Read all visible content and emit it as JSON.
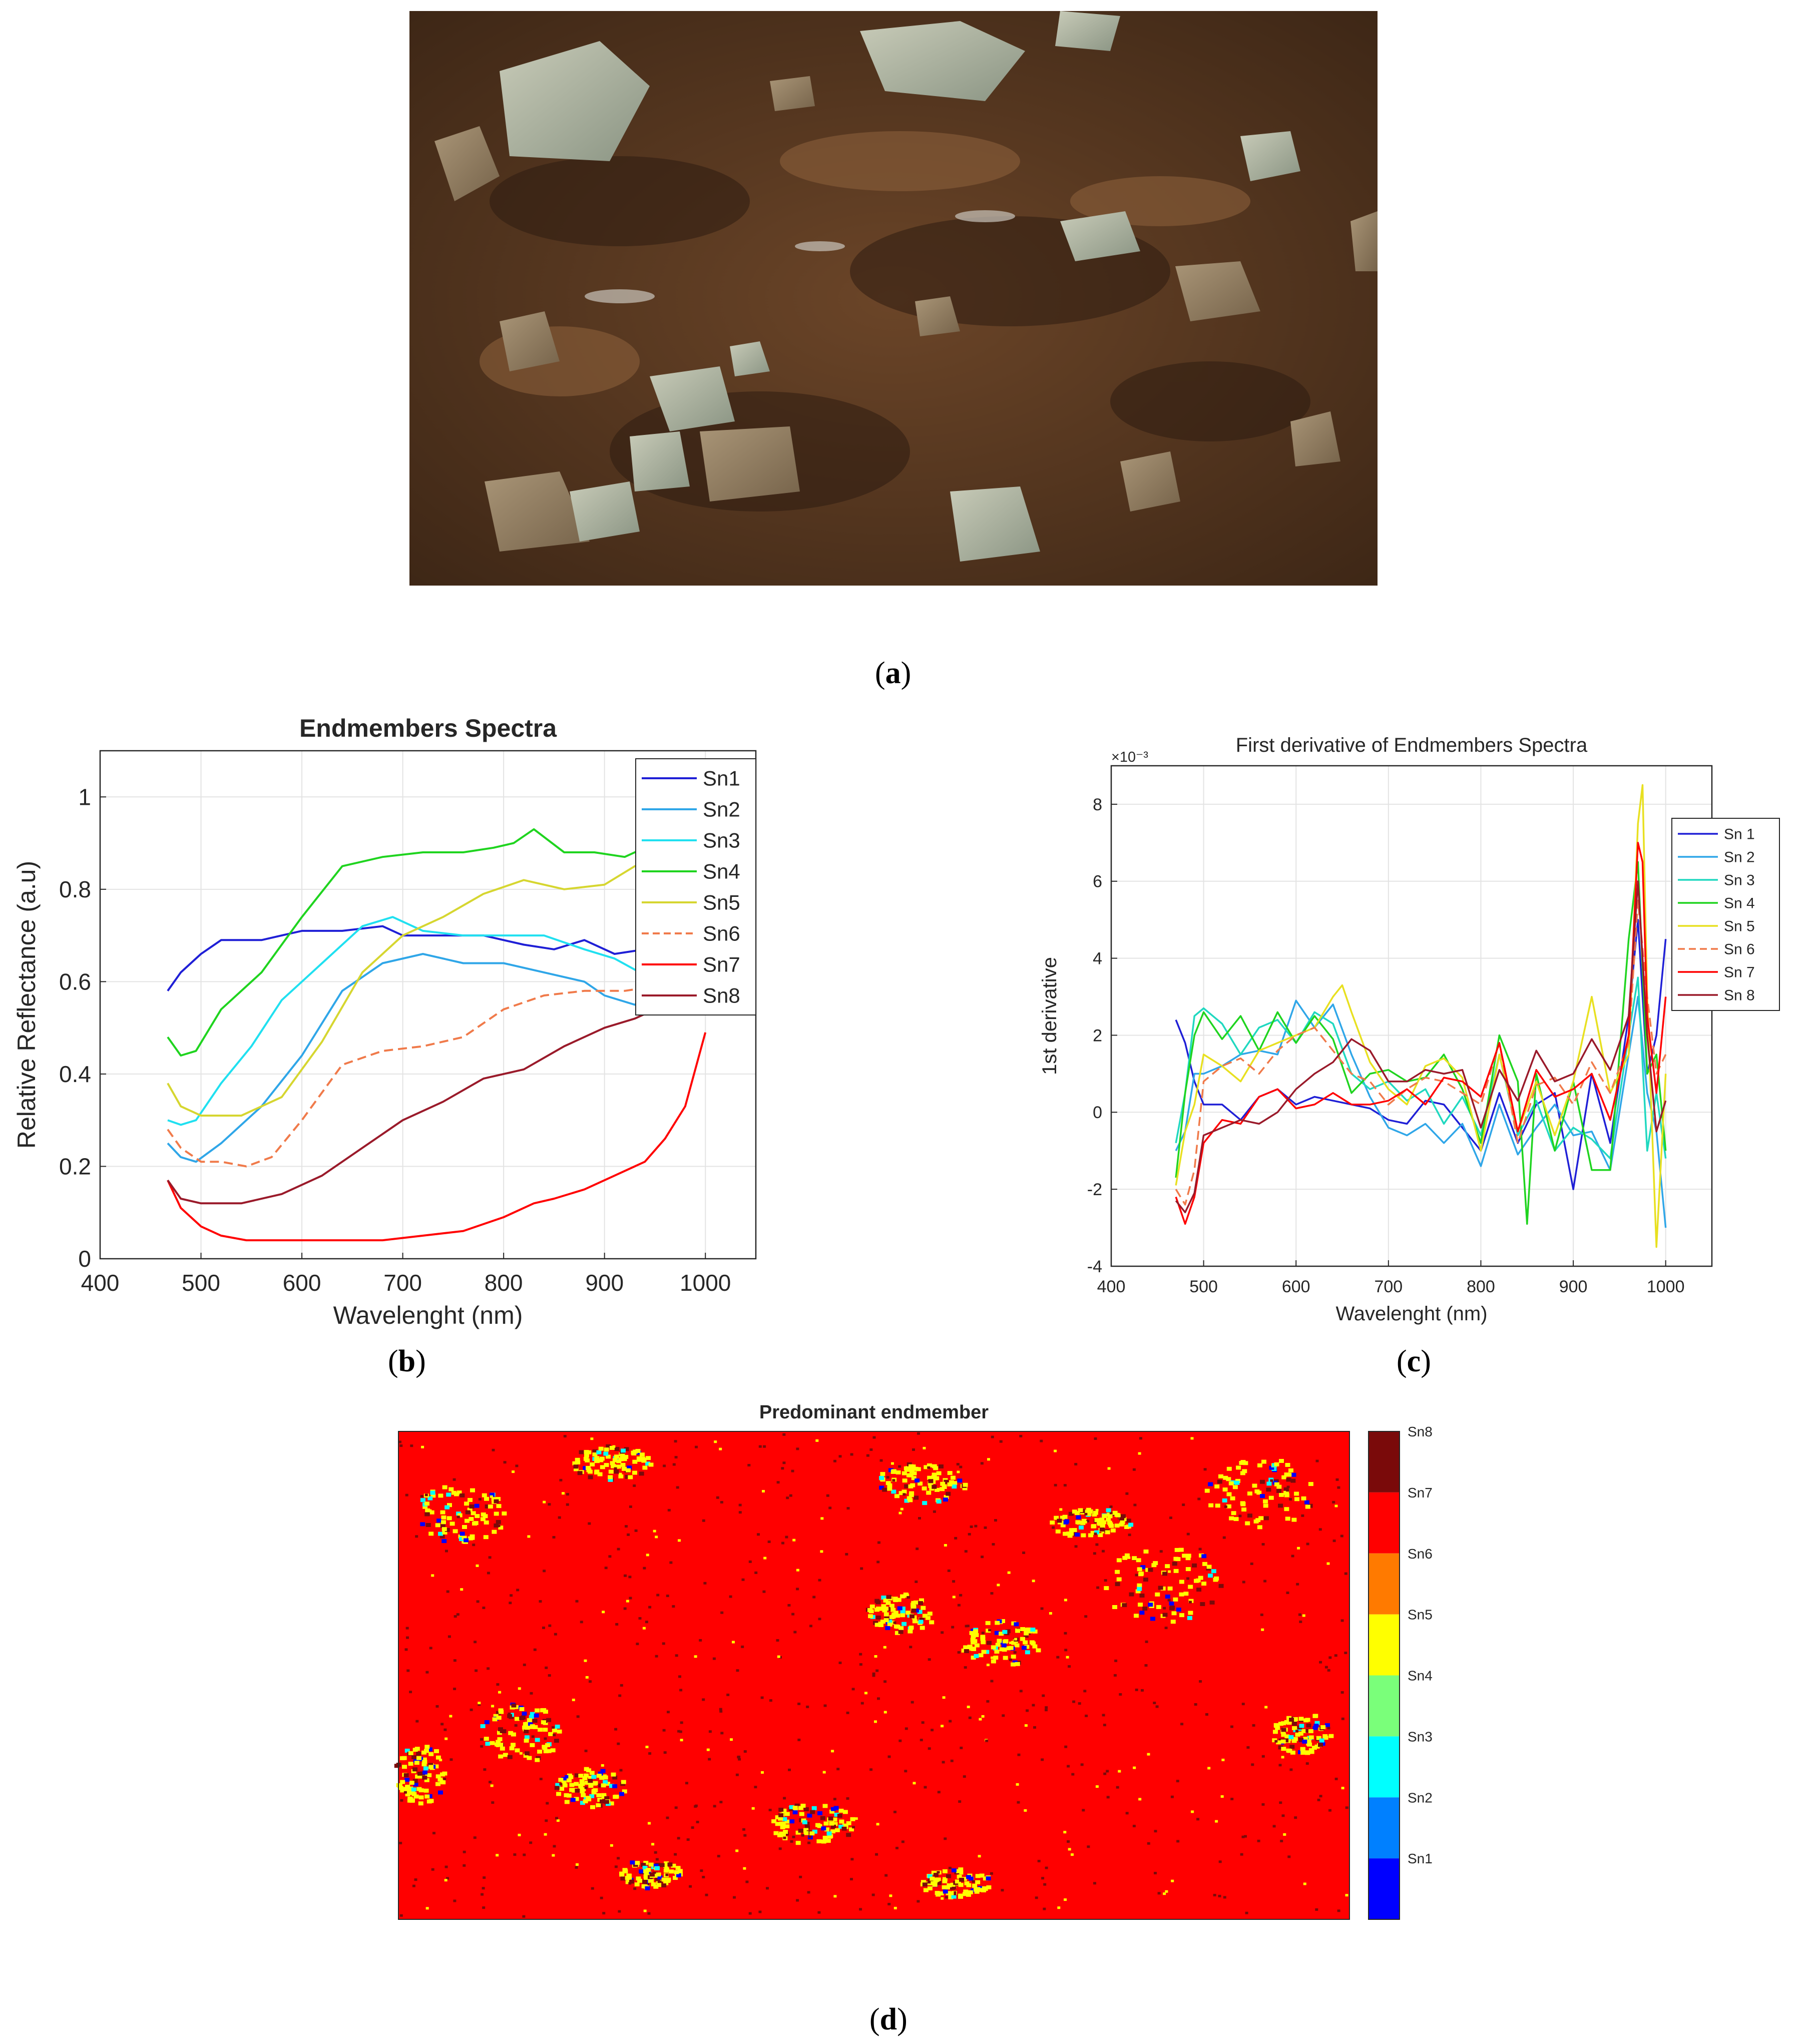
{
  "figure": {
    "label_a": "a",
    "label_b": "b",
    "label_c": "c",
    "label_d": "d"
  },
  "chart_data": [
    {
      "type": "line",
      "title": "Endmembers Spectra",
      "xlabel": "Wavelenght (nm)",
      "ylabel": "Relative Reflectance (a.u)",
      "xlim": [
        400,
        1050
      ],
      "ylim": [
        0,
        1.1
      ],
      "xticks": [
        "400",
        "500",
        "600",
        "700",
        "800",
        "900",
        "1000"
      ],
      "yticks": [
        "0",
        "0.2",
        "0.4",
        "0.6",
        "0.8",
        "1"
      ],
      "grid": true,
      "legend": "top-right",
      "series": [
        {
          "name": "Sn1",
          "color": "#1f1fd6",
          "dash": false,
          "x": [
            467,
            480,
            500,
            520,
            540,
            560,
            580,
            600,
            640,
            680,
            700,
            740,
            780,
            820,
            850,
            880,
            910,
            940,
            960,
            980,
            1000
          ],
          "y": [
            0.58,
            0.62,
            0.66,
            0.69,
            0.69,
            0.69,
            0.7,
            0.71,
            0.71,
            0.72,
            0.7,
            0.7,
            0.7,
            0.68,
            0.67,
            0.69,
            0.66,
            0.67,
            0.68,
            0.73,
            0.85
          ]
        },
        {
          "name": "Sn2",
          "color": "#2fa6e8",
          "dash": false,
          "x": [
            467,
            480,
            495,
            520,
            560,
            600,
            640,
            680,
            720,
            760,
            800,
            840,
            880,
            900,
            930,
            950,
            970,
            985,
            1000
          ],
          "y": [
            0.25,
            0.22,
            0.21,
            0.25,
            0.33,
            0.44,
            0.58,
            0.64,
            0.66,
            0.64,
            0.64,
            0.62,
            0.6,
            0.57,
            0.55,
            0.58,
            0.61,
            0.66,
            0.65
          ]
        },
        {
          "name": "Sn3",
          "color": "#20e0f0",
          "dash": false,
          "x": [
            467,
            480,
            495,
            520,
            550,
            580,
            620,
            660,
            690,
            720,
            760,
            800,
            840,
            880,
            910,
            935,
            960,
            980,
            1000
          ],
          "y": [
            0.3,
            0.29,
            0.3,
            0.38,
            0.46,
            0.56,
            0.64,
            0.72,
            0.74,
            0.71,
            0.7,
            0.7,
            0.7,
            0.67,
            0.65,
            0.62,
            0.65,
            0.71,
            0.7
          ]
        },
        {
          "name": "Sn4",
          "color": "#1fd41f",
          "dash": false,
          "x": [
            467,
            480,
            495,
            520,
            560,
            600,
            640,
            680,
            720,
            760,
            790,
            810,
            830,
            860,
            890,
            920,
            950,
            970,
            985,
            1000
          ],
          "y": [
            0.48,
            0.44,
            0.45,
            0.54,
            0.62,
            0.74,
            0.85,
            0.87,
            0.88,
            0.88,
            0.89,
            0.9,
            0.93,
            0.88,
            0.88,
            0.87,
            0.9,
            0.94,
            1.0,
            0.96
          ]
        },
        {
          "name": "Sn5",
          "color": "#d6d630",
          "dash": false,
          "x": [
            467,
            480,
            500,
            540,
            580,
            620,
            660,
            700,
            740,
            780,
            820,
            860,
            900,
            930,
            960,
            980,
            990,
            1000
          ],
          "y": [
            0.38,
            0.33,
            0.31,
            0.31,
            0.35,
            0.47,
            0.62,
            0.7,
            0.74,
            0.79,
            0.82,
            0.8,
            0.81,
            0.85,
            0.87,
            0.97,
            0.99,
            0.96
          ]
        },
        {
          "name": "Sn6",
          "color": "#f07a4a",
          "dash": true,
          "x": [
            467,
            480,
            500,
            520,
            545,
            570,
            600,
            640,
            680,
            720,
            760,
            800,
            840,
            880,
            920,
            950,
            975,
            1000
          ],
          "y": [
            0.28,
            0.24,
            0.21,
            0.21,
            0.2,
            0.22,
            0.3,
            0.42,
            0.45,
            0.46,
            0.48,
            0.54,
            0.57,
            0.58,
            0.58,
            0.59,
            0.67,
            0.74
          ]
        },
        {
          "name": "Sn7",
          "color": "#ff0000",
          "dash": false,
          "x": [
            467,
            480,
            500,
            520,
            545,
            580,
            620,
            680,
            720,
            760,
            800,
            830,
            850,
            880,
            910,
            940,
            960,
            980,
            1000
          ],
          "y": [
            0.17,
            0.11,
            0.07,
            0.05,
            0.04,
            0.04,
            0.04,
            0.04,
            0.05,
            0.06,
            0.09,
            0.12,
            0.13,
            0.15,
            0.18,
            0.21,
            0.26,
            0.33,
            0.49
          ]
        },
        {
          "name": "Sn8",
          "color": "#9a1a2a",
          "dash": false,
          "x": [
            467,
            480,
            500,
            540,
            580,
            620,
            660,
            700,
            740,
            780,
            820,
            860,
            900,
            930,
            960,
            980,
            1000
          ],
          "y": [
            0.17,
            0.13,
            0.12,
            0.12,
            0.14,
            0.18,
            0.24,
            0.3,
            0.34,
            0.39,
            0.41,
            0.46,
            0.5,
            0.52,
            0.55,
            0.58,
            0.59
          ]
        }
      ]
    },
    {
      "type": "line",
      "title": "First derivative of Endmembers Spectra",
      "xlabel": "Wavelenght (nm)",
      "ylabel": "1st derivative",
      "exponent_label": "×10⁻³",
      "xlim": [
        400,
        1050
      ],
      "ylim": [
        -4,
        9
      ],
      "xticks": [
        "400",
        "500",
        "600",
        "700",
        "800",
        "900",
        "1000"
      ],
      "yticks": [
        "-4",
        "-2",
        "0",
        "2",
        "4",
        "6",
        "8"
      ],
      "grid": true,
      "legend": "top-right",
      "series": [
        {
          "name": "Sn 1",
          "color": "#1f1fd6",
          "dash": false,
          "x": [
            470,
            480,
            490,
            500,
            520,
            540,
            560,
            580,
            600,
            620,
            640,
            660,
            680,
            700,
            720,
            740,
            760,
            780,
            800,
            820,
            840,
            860,
            880,
            900,
            920,
            940,
            960,
            970,
            980,
            990,
            1000
          ],
          "y": [
            2.4,
            1.8,
            0.8,
            0.2,
            0.2,
            -0.2,
            0.4,
            0.6,
            0.2,
            0.4,
            0.3,
            0.2,
            0.1,
            -0.2,
            -0.3,
            0.3,
            0.2,
            -0.4,
            -1.0,
            0.5,
            -0.8,
            0.2,
            0.5,
            -2.0,
            1.0,
            -0.8,
            2.5,
            5.0,
            1.0,
            2.0,
            4.5
          ]
        },
        {
          "name": "Sn 2",
          "color": "#2fa6e8",
          "dash": false,
          "x": [
            470,
            480,
            490,
            500,
            520,
            540,
            560,
            580,
            600,
            620,
            640,
            660,
            680,
            700,
            720,
            740,
            760,
            780,
            800,
            820,
            840,
            860,
            880,
            900,
            920,
            940,
            960,
            970,
            980,
            990,
            1000
          ],
          "y": [
            -1.0,
            -0.5,
            1.0,
            1.0,
            1.2,
            1.5,
            1.6,
            1.5,
            2.9,
            2.2,
            2.8,
            1.5,
            0.4,
            -0.4,
            -0.6,
            -0.3,
            -0.8,
            -0.3,
            -1.4,
            0.2,
            -1.1,
            -0.4,
            0.2,
            -0.6,
            -0.5,
            -1.5,
            1.5,
            3.0,
            0.5,
            -0.5,
            -3.0
          ]
        },
        {
          "name": "Sn 3",
          "color": "#20d8c0",
          "dash": false,
          "x": [
            470,
            480,
            490,
            500,
            520,
            540,
            560,
            580,
            600,
            620,
            640,
            660,
            680,
            700,
            720,
            740,
            760,
            780,
            800,
            820,
            840,
            860,
            880,
            900,
            920,
            940,
            960,
            970,
            980,
            990,
            1000
          ],
          "y": [
            -0.8,
            0.5,
            2.5,
            2.7,
            2.3,
            1.5,
            2.2,
            2.4,
            1.8,
            2.6,
            2.3,
            1.0,
            0.6,
            0.8,
            0.3,
            0.6,
            -0.3,
            0.4,
            -0.6,
            1.5,
            -0.6,
            0.3,
            -1.0,
            -0.4,
            -0.7,
            -1.2,
            2.0,
            3.5,
            -1.0,
            0.5,
            -1.2
          ]
        },
        {
          "name": "Sn 4",
          "color": "#1fd41f",
          "dash": false,
          "x": [
            470,
            480,
            490,
            500,
            520,
            540,
            560,
            580,
            600,
            620,
            640,
            660,
            680,
            700,
            720,
            740,
            760,
            780,
            800,
            820,
            840,
            850,
            860,
            880,
            900,
            920,
            940,
            960,
            970,
            980,
            990,
            1000
          ],
          "y": [
            -1.7,
            0.5,
            2.0,
            2.6,
            1.9,
            2.5,
            1.6,
            2.6,
            1.8,
            2.5,
            1.9,
            0.5,
            1.0,
            1.1,
            0.8,
            0.9,
            1.5,
            0.6,
            -0.8,
            2.0,
            0.8,
            -2.9,
            1.0,
            -1.0,
            0.8,
            -1.5,
            -1.5,
            4.5,
            6.5,
            1.0,
            1.5,
            -1.0
          ]
        },
        {
          "name": "Sn 5",
          "color": "#e8e020",
          "dash": false,
          "x": [
            470,
            480,
            490,
            500,
            520,
            540,
            560,
            580,
            600,
            620,
            640,
            650,
            660,
            680,
            700,
            720,
            740,
            760,
            780,
            800,
            820,
            840,
            860,
            880,
            900,
            920,
            940,
            960,
            970,
            975,
            980,
            990,
            1000
          ],
          "y": [
            -1.9,
            -0.5,
            0.2,
            1.5,
            1.2,
            0.8,
            1.6,
            1.8,
            2.0,
            2.2,
            3.0,
            3.3,
            2.6,
            1.3,
            0.6,
            0.2,
            1.2,
            1.4,
            0.9,
            -1.0,
            1.5,
            -0.5,
            0.8,
            -0.6,
            0.8,
            3.0,
            0.5,
            1.5,
            7.5,
            8.5,
            3.0,
            -3.5,
            1.0
          ]
        },
        {
          "name": "Sn 6",
          "color": "#f07a4a",
          "dash": true,
          "x": [
            470,
            480,
            490,
            500,
            520,
            540,
            560,
            580,
            600,
            620,
            640,
            660,
            680,
            700,
            720,
            740,
            760,
            780,
            800,
            820,
            840,
            860,
            880,
            900,
            920,
            940,
            960,
            970,
            980,
            990,
            1000
          ],
          "y": [
            -2.0,
            -2.4,
            -1.5,
            0.8,
            1.2,
            1.4,
            1.0,
            1.6,
            2.0,
            2.2,
            1.6,
            1.0,
            0.8,
            0.2,
            0.6,
            0.9,
            0.8,
            0.5,
            0.2,
            1.8,
            -0.8,
            0.7,
            0.9,
            0.2,
            1.3,
            0.5,
            1.8,
            5.5,
            3.0,
            1.0,
            1.5
          ]
        },
        {
          "name": "Sn 7",
          "color": "#ff0000",
          "dash": false,
          "x": [
            470,
            480,
            490,
            500,
            520,
            540,
            560,
            580,
            600,
            620,
            640,
            660,
            680,
            700,
            720,
            740,
            760,
            780,
            800,
            820,
            840,
            860,
            880,
            900,
            920,
            940,
            960,
            970,
            975,
            980,
            990,
            1000
          ],
          "y": [
            -2.2,
            -2.9,
            -2.2,
            -0.8,
            -0.2,
            -0.3,
            0.4,
            0.6,
            0.1,
            0.2,
            0.5,
            0.2,
            0.2,
            0.3,
            0.6,
            0.2,
            0.9,
            0.8,
            0.4,
            1.8,
            -0.5,
            1.1,
            0.4,
            0.6,
            1.0,
            -0.2,
            2.0,
            7.0,
            6.5,
            2.5,
            0.5,
            3.0
          ]
        },
        {
          "name": "Sn 8",
          "color": "#9a1a2a",
          "dash": false,
          "x": [
            470,
            480,
            490,
            500,
            520,
            540,
            560,
            580,
            600,
            620,
            640,
            660,
            680,
            700,
            720,
            740,
            760,
            780,
            800,
            820,
            840,
            860,
            880,
            900,
            920,
            940,
            960,
            970,
            980,
            990,
            1000
          ],
          "y": [
            -2.3,
            -2.6,
            -2.1,
            -0.6,
            -0.4,
            -0.2,
            -0.3,
            0.0,
            0.6,
            1.0,
            1.3,
            1.9,
            1.6,
            0.8,
            0.8,
            1.1,
            1.0,
            1.1,
            -0.4,
            1.1,
            0.3,
            1.6,
            0.8,
            1.0,
            1.9,
            1.1,
            2.5,
            6.0,
            2.0,
            -0.5,
            0.3
          ]
        }
      ]
    },
    {
      "type": "heatmap",
      "title": "Predominant endmember",
      "background_class": "Sn7",
      "colorbar": {
        "labels": [
          "Sn8",
          "Sn7",
          "Sn6",
          "Sn5",
          "Sn4",
          "Sn3",
          "Sn2",
          "Sn1"
        ],
        "colors": [
          "#7a0a0a",
          "#ff0000",
          "#ff7a00",
          "#ffff00",
          "#7aff7a",
          "#00ffff",
          "#0080ff",
          "#0000ff"
        ]
      }
    }
  ]
}
